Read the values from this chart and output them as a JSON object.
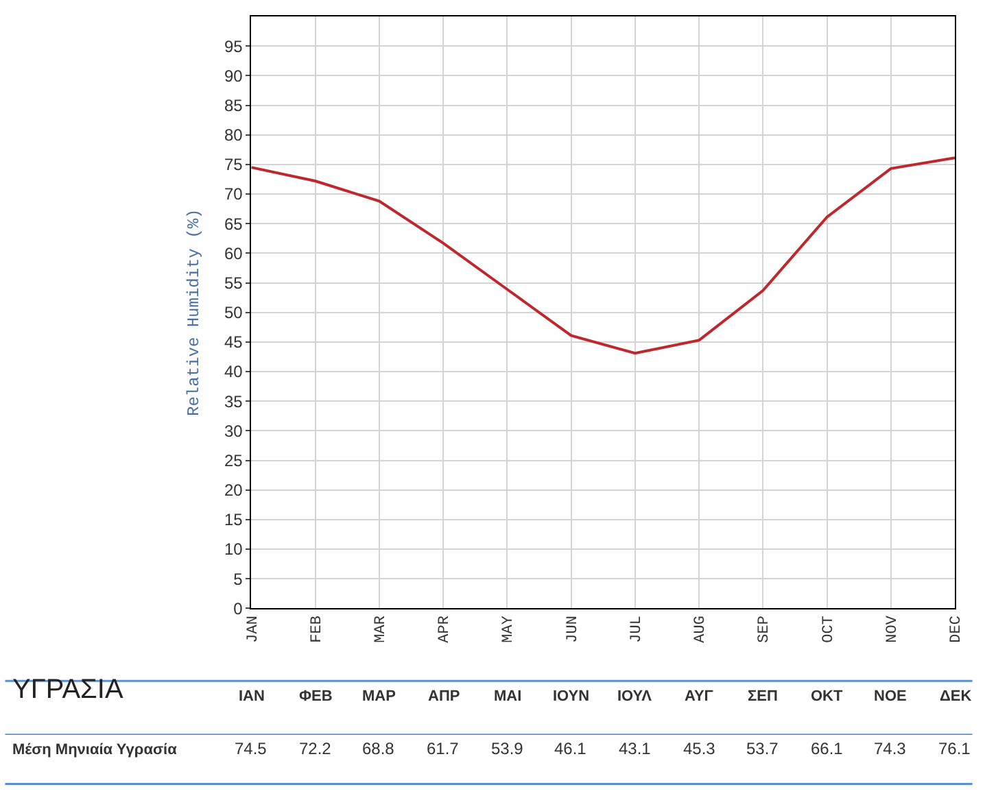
{
  "chart_data": {
    "type": "line",
    "ylabel": "Relative Humidity (%)",
    "categories": [
      "JAN",
      "FEB",
      "MAR",
      "APR",
      "MAY",
      "JUN",
      "JUL",
      "AUG",
      "SEP",
      "OCT",
      "NOV",
      "DEC"
    ],
    "values": [
      74.5,
      72.2,
      68.8,
      61.7,
      53.9,
      46.1,
      43.1,
      45.3,
      53.7,
      66.1,
      74.3,
      76.1
    ],
    "color": "#c0272d",
    "ylim": [
      0,
      100
    ],
    "yticks": [
      0,
      5,
      10,
      15,
      20,
      25,
      30,
      35,
      40,
      45,
      50,
      55,
      60,
      65,
      70,
      75,
      80,
      85,
      90,
      95
    ],
    "grid": true,
    "marker": "none",
    "line_style": "solid",
    "data_labels": true,
    "annotations": [
      "ΥΓΡΑΣΙΑ",
      "Μέση Μηνιαία Υγρασία",
      "ΙΑΝ",
      "ΦΕΒ",
      "ΜΑΡ",
      "ΑΠΡ",
      "ΜΑΙ",
      "ΙΟΥΝ",
      "ΙΟΥΛ",
      "ΑΥΓ",
      "ΣΕΠ",
      "ΟΚΤ",
      "ΝΟΕ",
      "ΔΕΚ"
    ]
  }
}
